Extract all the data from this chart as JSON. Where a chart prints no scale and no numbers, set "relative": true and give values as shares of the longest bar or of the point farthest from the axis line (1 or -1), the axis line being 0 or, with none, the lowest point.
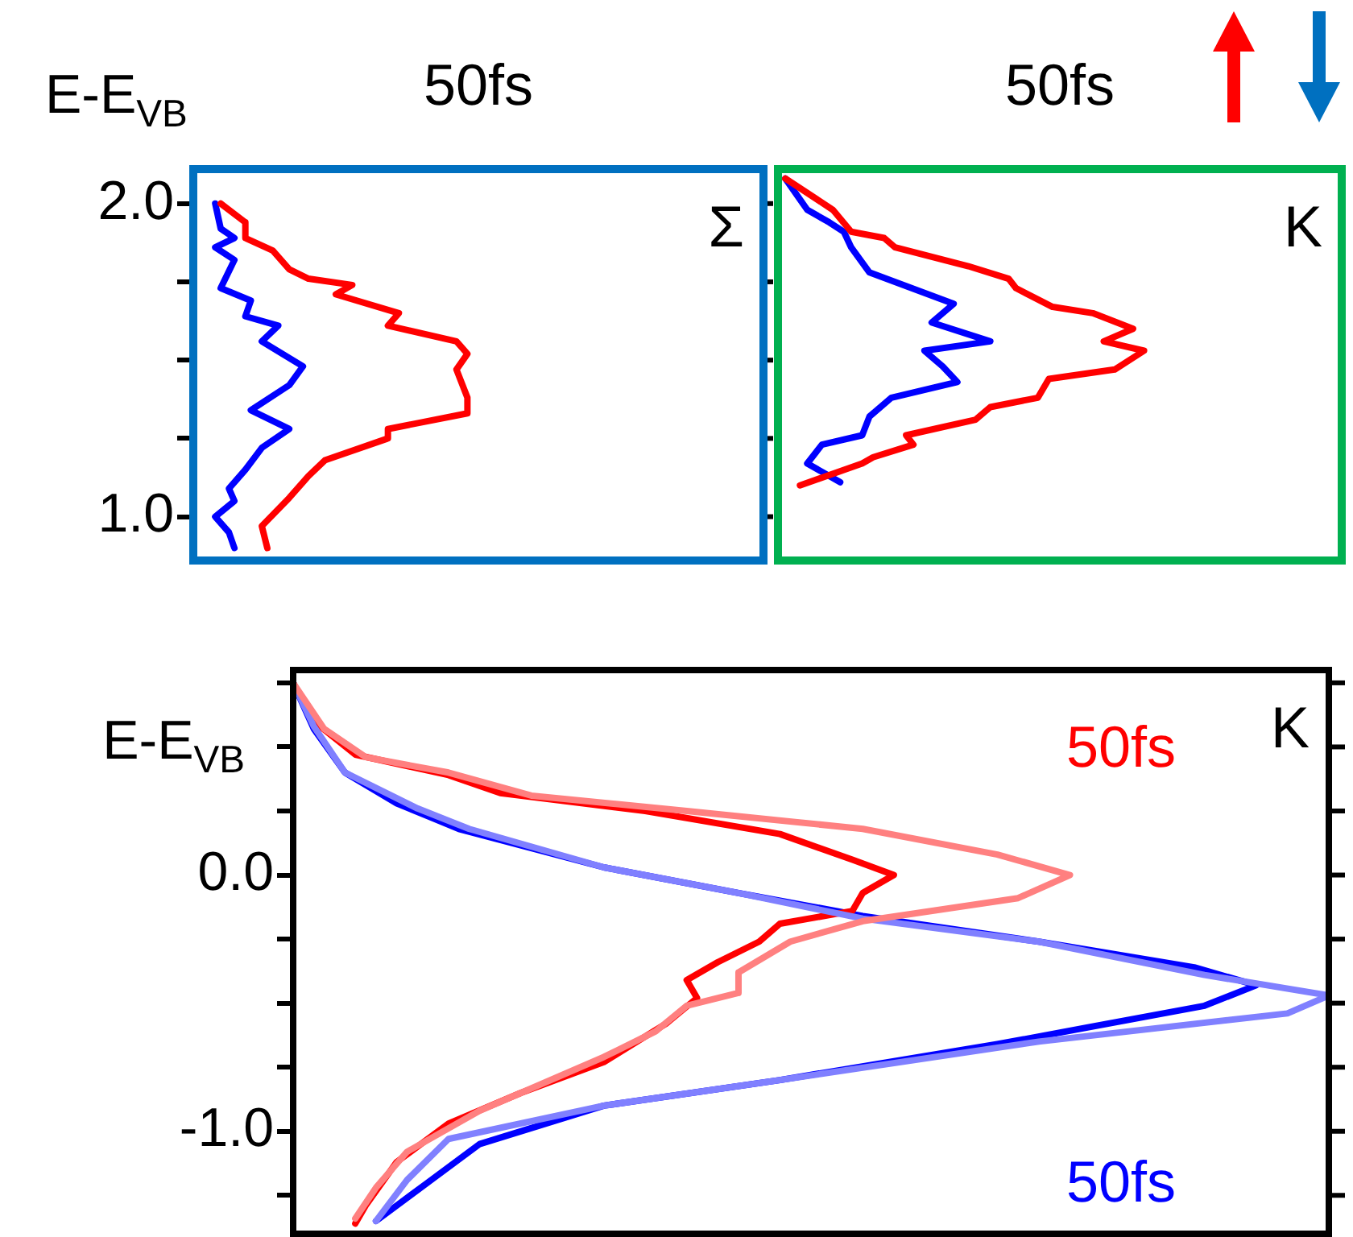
{
  "chart_data": [
    {
      "type": "line",
      "orientation": "horizontal",
      "relative": true,
      "title": "50fs",
      "ylabel": "E-E$_{VB}$",
      "annotations": [
        "Σ"
      ],
      "ylim": [
        0.86,
        2.11
      ],
      "yticks": [
        {
          "value": 1,
          "label": "1.0"
        },
        {
          "value": 1.25,
          "label": null
        },
        {
          "value": 1.5,
          "label": null
        },
        {
          "value": 1.75,
          "label": null
        },
        {
          "value": 2,
          "label": "2.0"
        }
      ],
      "tick_labels": "y",
      "series": [
        {
          "color": "#ff0000",
          "values": [
            0.1,
            0.19,
            0.19,
            0.29,
            0.35,
            0.42,
            0.58,
            0.52,
            0.75,
            0.71,
            0.96,
            1,
            0.96,
            1,
            1,
            0.71,
            0.71,
            0.48,
            0.42,
            0.35,
            0.25,
            0.27
          ],
          "x": [
            2.0,
            1.94,
            1.89,
            1.85,
            1.79,
            1.76,
            1.74,
            1.71,
            1.65,
            1.61,
            1.56,
            1.52,
            1.47,
            1.38,
            1.33,
            1.28,
            1.25,
            1.18,
            1.13,
            1.06,
            0.97,
            0.9
          ]
        },
        {
          "color": "#0000ff",
          "values": [
            0.08,
            0.1,
            0.15,
            0.08,
            0.15,
            0.1,
            0.21,
            0.19,
            0.31,
            0.25,
            0.4,
            0.35,
            0.21,
            0.35,
            0.25,
            0.19,
            0.13,
            0.15,
            0.08,
            0.13,
            0.15
          ],
          "x": [
            2.0,
            1.92,
            1.89,
            1.86,
            1.82,
            1.73,
            1.69,
            1.64,
            1.61,
            1.56,
            1.48,
            1.42,
            1.34,
            1.28,
            1.22,
            1.15,
            1.09,
            1.05,
            1.0,
            0.95,
            0.9
          ]
        }
      ]
    },
    {
      "type": "line",
      "orientation": "horizontal",
      "relative": true,
      "title": "50fs",
      "annotations": [
        "K"
      ],
      "ylim": [
        0.86,
        2.11
      ],
      "tick_labels": false,
      "series": [
        {
          "color": "#ff0000",
          "values": [
            0.02,
            0.15,
            0.2,
            0.29,
            0.32,
            0.52,
            0.63,
            0.65,
            0.75,
            0.86,
            0.97,
            0.89,
            1,
            0.92,
            0.74,
            0.71,
            0.58,
            0.54,
            0.35,
            0.37,
            0.26,
            0.23,
            0.06
          ],
          "x": [
            2.08,
            1.98,
            1.91,
            1.89,
            1.86,
            1.8,
            1.76,
            1.73,
            1.67,
            1.65,
            1.6,
            1.56,
            1.53,
            1.47,
            1.44,
            1.38,
            1.35,
            1.31,
            1.26,
            1.23,
            1.19,
            1.17,
            1.1
          ]
        },
        {
          "color": "#0000ff",
          "values": [
            0.02,
            0.08,
            0.14,
            0.18,
            0.2,
            0.25,
            0.48,
            0.42,
            0.58,
            0.4,
            0.45,
            0.49,
            0.31,
            0.25,
            0.23,
            0.12,
            0.08,
            0.17
          ],
          "x": [
            2.08,
            1.98,
            1.94,
            1.91,
            1.86,
            1.78,
            1.68,
            1.62,
            1.56,
            1.53,
            1.48,
            1.43,
            1.38,
            1.32,
            1.26,
            1.23,
            1.17,
            1.11
          ]
        }
      ]
    },
    {
      "type": "line",
      "orientation": "horizontal",
      "relative": true,
      "ylabel": "E-E$_{VB}$",
      "annotations": [
        "K"
      ],
      "ylim": [
        -1.4,
        0.8
      ],
      "yticks": [
        {
          "value": -1.25,
          "label": null
        },
        {
          "value": -1,
          "label": "-1.0"
        },
        {
          "value": -0.75,
          "label": null
        },
        {
          "value": -0.5,
          "label": null
        },
        {
          "value": -0.25,
          "label": null
        },
        {
          "value": 0,
          "label": "0.0"
        },
        {
          "value": 0.25,
          "label": null
        },
        {
          "value": 0.5,
          "label": null
        },
        {
          "value": 0.75,
          "label": null
        }
      ],
      "tick_labels": "y",
      "series": [
        {
          "color": "#ff8080",
          "values": [
            0,
            0.03,
            0.07,
            0.15,
            0.23,
            0.38,
            0.55,
            0.68,
            0.75,
            0.7,
            0.55,
            0.48,
            0.43,
            0.43,
            0.38,
            0.35,
            0.3,
            0.18,
            0.11,
            0.08,
            0.06
          ],
          "x": [
            0.75,
            0.57,
            0.46,
            0.4,
            0.31,
            0.25,
            0.18,
            0.08,
            0.0,
            -0.09,
            -0.18,
            -0.26,
            -0.38,
            -0.46,
            -0.51,
            -0.61,
            -0.71,
            -0.92,
            -1.08,
            -1.22,
            -1.34
          ]
        },
        {
          "color": "#8080ff",
          "values": [
            0,
            0.02,
            0.05,
            0.12,
            0.17,
            0.3,
            0.43,
            0.55,
            0.72,
            0.88,
            1.0,
            0.96,
            0.72,
            0.47,
            0.3,
            0.15,
            0.11,
            0.08
          ],
          "x": [
            0.75,
            0.58,
            0.4,
            0.26,
            0.18,
            0.03,
            -0.07,
            -0.17,
            -0.26,
            -0.39,
            -0.47,
            -0.54,
            -0.65,
            -0.8,
            -0.9,
            -1.03,
            -1.19,
            -1.35
          ]
        },
        {
          "name": "50fs",
          "color": "#ff0000",
          "values": [
            0,
            0.02,
            0.06,
            0.15,
            0.2,
            0.34,
            0.47,
            0.54,
            0.58,
            0.55,
            0.54,
            0.47,
            0.45,
            0.41,
            0.38,
            0.39,
            0.36,
            0.3,
            0.22,
            0.15,
            0.1,
            0.07,
            0.06
          ],
          "x": [
            0.75,
            0.6,
            0.47,
            0.39,
            0.32,
            0.25,
            0.16,
            0.06,
            0.0,
            -0.07,
            -0.14,
            -0.19,
            -0.26,
            -0.34,
            -0.41,
            -0.48,
            -0.58,
            -0.73,
            -0.85,
            -0.97,
            -1.12,
            -1.29,
            -1.36
          ]
        },
        {
          "name": "50fs",
          "color": "#0000ff",
          "values": [
            0,
            0.02,
            0.05,
            0.1,
            0.16,
            0.3,
            0.43,
            0.55,
            0.72,
            0.87,
            0.93,
            0.88,
            0.68,
            0.47,
            0.3,
            0.18,
            0.13,
            0.08
          ],
          "x": [
            0.75,
            0.57,
            0.4,
            0.28,
            0.18,
            0.03,
            -0.07,
            -0.16,
            -0.26,
            -0.36,
            -0.43,
            -0.51,
            -0.66,
            -0.8,
            -0.9,
            -1.05,
            -1.2,
            -1.35
          ]
        }
      ]
    }
  ]
}
